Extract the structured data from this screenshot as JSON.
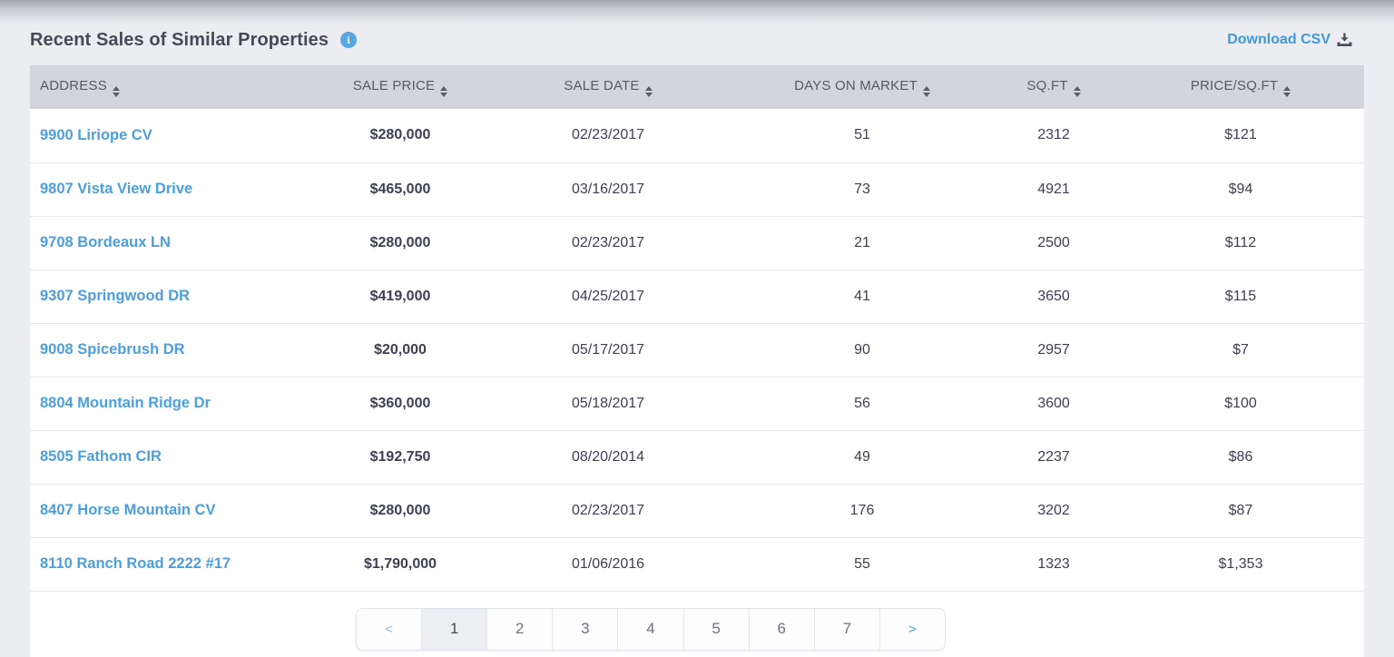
{
  "header": {
    "title": "Recent Sales of Similar Properties",
    "download_label": "Download CSV"
  },
  "table": {
    "columns": [
      {
        "label": "ADDRESS"
      },
      {
        "label": "SALE PRICE"
      },
      {
        "label": "SALE DATE"
      },
      {
        "label": "DAYS ON MARKET"
      },
      {
        "label": "SQ.FT"
      },
      {
        "label": "PRICE/SQ.FT"
      }
    ],
    "rows": [
      {
        "address": "9900 Liriope CV",
        "sale_price": "$280,000",
        "sale_date": "02/23/2017",
        "days_on_market": "51",
        "sqft": "2312",
        "price_per_sqft": "$121"
      },
      {
        "address": "9807 Vista View Drive",
        "sale_price": "$465,000",
        "sale_date": "03/16/2017",
        "days_on_market": "73",
        "sqft": "4921",
        "price_per_sqft": "$94"
      },
      {
        "address": "9708 Bordeaux LN",
        "sale_price": "$280,000",
        "sale_date": "02/23/2017",
        "days_on_market": "21",
        "sqft": "2500",
        "price_per_sqft": "$112"
      },
      {
        "address": "9307 Springwood DR",
        "sale_price": "$419,000",
        "sale_date": "04/25/2017",
        "days_on_market": "41",
        "sqft": "3650",
        "price_per_sqft": "$115"
      },
      {
        "address": "9008 Spicebrush DR",
        "sale_price": "$20,000",
        "sale_date": "05/17/2017",
        "days_on_market": "90",
        "sqft": "2957",
        "price_per_sqft": "$7"
      },
      {
        "address": "8804 Mountain Ridge Dr",
        "sale_price": "$360,000",
        "sale_date": "05/18/2017",
        "days_on_market": "56",
        "sqft": "3600",
        "price_per_sqft": "$100"
      },
      {
        "address": "8505 Fathom CIR",
        "sale_price": "$192,750",
        "sale_date": "08/20/2014",
        "days_on_market": "49",
        "sqft": "2237",
        "price_per_sqft": "$86"
      },
      {
        "address": "8407 Horse Mountain CV",
        "sale_price": "$280,000",
        "sale_date": "02/23/2017",
        "days_on_market": "176",
        "sqft": "3202",
        "price_per_sqft": "$87"
      },
      {
        "address": "8110 Ranch Road 2222 #17",
        "sale_price": "$1,790,000",
        "sale_date": "01/06/2016",
        "days_on_market": "55",
        "sqft": "1323",
        "price_per_sqft": "$1,353"
      }
    ]
  },
  "pagination": {
    "prev_label": "<",
    "next_label": ">",
    "pages": [
      "1",
      "2",
      "3",
      "4",
      "5",
      "6",
      "7"
    ],
    "active_page": "1"
  },
  "icons": {
    "info": "info-icon",
    "download": "download-icon",
    "sort": "sort-asc-desc-icon",
    "prev": "chevron-left-icon",
    "next": "chevron-right-icon"
  },
  "colors": {
    "accent_blue": "#4b9fdf",
    "download_blue": "#3d99df",
    "info_icon_bg": "#57a7e1",
    "header_bg": "#d4d5dc",
    "header_text": "#575a64",
    "body_text": "#3d4050",
    "page_bg": "#ecedf1",
    "row_divider": "#e7e8ec",
    "pagination_active_bg": "#edeef2"
  }
}
